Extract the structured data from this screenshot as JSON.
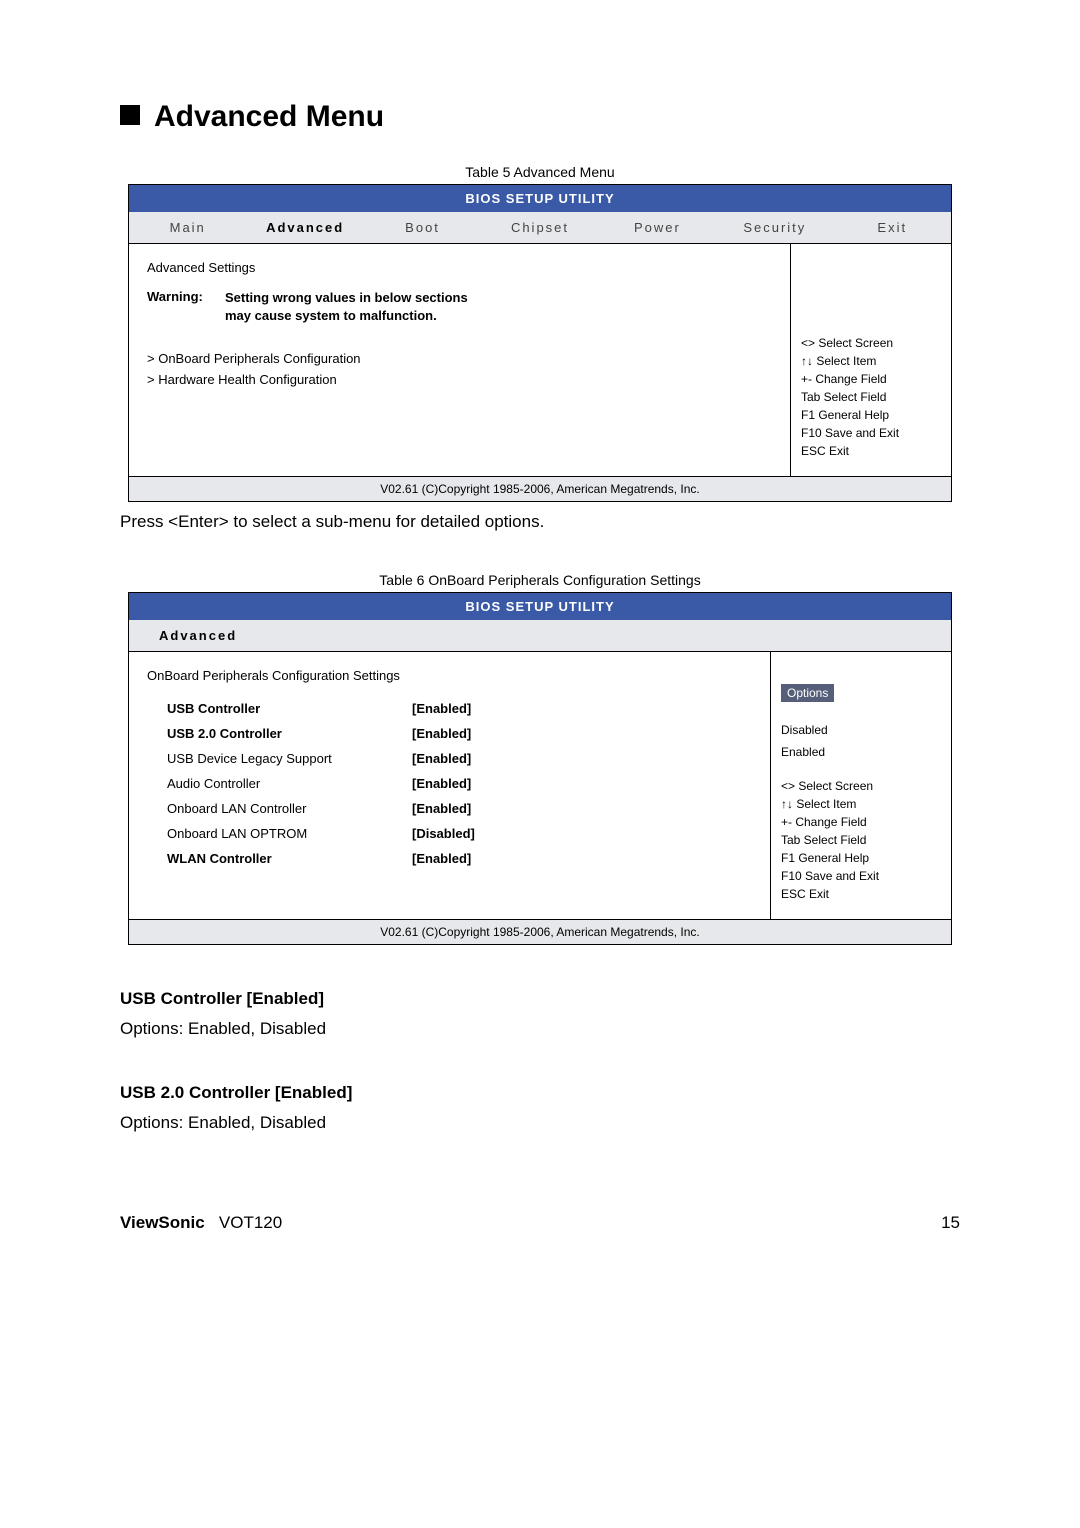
{
  "page_title": "Advanced Menu",
  "table5": {
    "caption": "Table 5 Advanced Menu",
    "header": "BIOS SETUP UTILITY",
    "tabs": [
      "Main",
      "Advanced",
      "Boot",
      "Chipset",
      "Power",
      "Security",
      "Exit"
    ],
    "heading": "Advanced Settings",
    "warning_label": "Warning:",
    "warning_text_line1": "Setting wrong values in below sections",
    "warning_text_line2": "may cause system to malfunction.",
    "items": [
      "> OnBoard Peripherals Configuration",
      "> Hardware Health Configuration"
    ],
    "help": [
      "<> Select Screen",
      "↑↓ Select Item",
      "+- Change Field",
      "Tab Select Field",
      "F1 General Help",
      "F10 Save and Exit",
      "ESC Exit"
    ],
    "footer": "V02.61 (C)Copyright 1985-2006, American Megatrends, Inc."
  },
  "after_table5_text": "Press <Enter> to select a sub-menu for detailed options.",
  "table6": {
    "caption": "Table 6 OnBoard Peripherals Configuration Settings",
    "header": "BIOS SETUP UTILITY",
    "tab": "Advanced",
    "heading": "OnBoard Peripherals Configuration Settings",
    "rows": [
      {
        "label": "USB Controller",
        "value": "[Enabled]",
        "bold": true
      },
      {
        "label": "USB 2.0 Controller",
        "value": "[Enabled]",
        "bold": true
      },
      {
        "label": "USB Device Legacy Support",
        "value": "[Enabled]",
        "bold": false
      },
      {
        "label": "Audio Controller",
        "value": "[Enabled]",
        "bold": false
      },
      {
        "label": "Onboard LAN Controller",
        "value": "[Enabled]",
        "bold": false
      },
      {
        "label": "Onboard LAN OPTROM",
        "value": "[Disabled]",
        "bold": false
      },
      {
        "label": "WLAN Controller",
        "value": "[Enabled]",
        "bold": true
      }
    ],
    "options_title": "Options",
    "options": [
      "Disabled",
      "Enabled"
    ],
    "help": [
      "<> Select Screen",
      "↑↓ Select Item",
      "+- Change Field",
      "Tab Select Field",
      "F1 General Help",
      "F10 Save and Exit",
      "ESC Exit"
    ],
    "footer": "V02.61 (C)Copyright 1985-2006, American Megatrends, Inc."
  },
  "sections": [
    {
      "title": "USB Controller [Enabled]",
      "text": "Options: Enabled, Disabled"
    },
    {
      "title": "USB 2.0 Controller [Enabled]",
      "text": "Options: Enabled, Disabled"
    }
  ],
  "footer": {
    "brand": "ViewSonic",
    "model": "VOT120",
    "page": "15"
  }
}
